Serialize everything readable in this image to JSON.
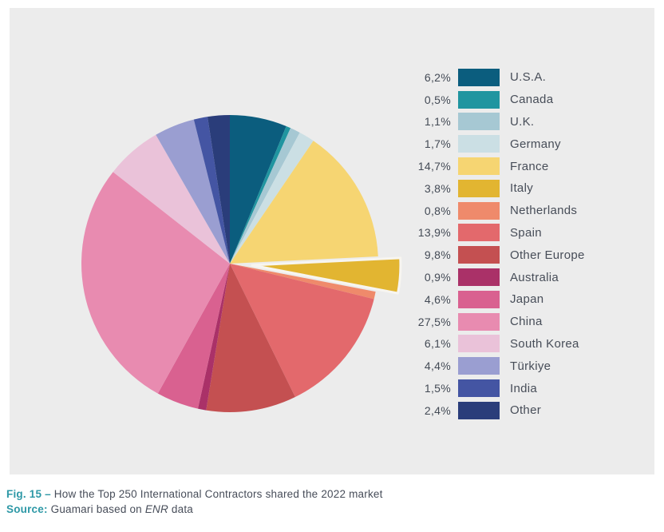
{
  "colors": {
    "panel_bg": "#ececec",
    "accent_teal": "#2d98a6",
    "caption_text": "#474d59",
    "legend_text": "#434a55"
  },
  "chart_data": {
    "type": "pie",
    "title": "How the Top 250 International Contractors shared the 2022 market",
    "source": "Guamari based on ENR data",
    "start_angle_deg": 0,
    "direction": "clockwise",
    "legend_position": "right",
    "slices": [
      {
        "label": "U.S.A.",
        "percent_display": "6,2%",
        "value": 6.2,
        "color": "#0b5d7e",
        "exploded": false
      },
      {
        "label": "Canada",
        "percent_display": "0,5%",
        "value": 0.5,
        "color": "#2095a0",
        "exploded": false
      },
      {
        "label": "U.K.",
        "percent_display": "1,1%",
        "value": 1.1,
        "color": "#a6c8d3",
        "exploded": false
      },
      {
        "label": "Germany",
        "percent_display": "1,7%",
        "value": 1.7,
        "color": "#cbdfe4",
        "exploded": false
      },
      {
        "label": "France",
        "percent_display": "14,7%",
        "value": 14.7,
        "color": "#f6d572",
        "exploded": false
      },
      {
        "label": "Italy",
        "percent_display": "3,8%",
        "value": 3.8,
        "color": "#e2b531",
        "exploded": true
      },
      {
        "label": "Netherlands",
        "percent_display": "0,8%",
        "value": 0.8,
        "color": "#ef8a6b",
        "exploded": false
      },
      {
        "label": "Spain",
        "percent_display": "13,9%",
        "value": 13.9,
        "color": "#e3696c",
        "exploded": false
      },
      {
        "label": "Other Europe",
        "percent_display": "9,8%",
        "value": 9.8,
        "color": "#c45051",
        "exploded": false
      },
      {
        "label": "Australia",
        "percent_display": "0,9%",
        "value": 0.9,
        "color": "#aa3168",
        "exploded": false
      },
      {
        "label": "Japan",
        "percent_display": "4,6%",
        "value": 4.6,
        "color": "#d96190",
        "exploded": false
      },
      {
        "label": "China",
        "percent_display": "27,5%",
        "value": 27.5,
        "color": "#e88bb0",
        "exploded": false
      },
      {
        "label": "South Korea",
        "percent_display": "6,1%",
        "value": 6.1,
        "color": "#eac2d9",
        "exploded": false
      },
      {
        "label": "Türkiye",
        "percent_display": "4,4%",
        "value": 4.4,
        "color": "#9a9ed1",
        "exploded": false
      },
      {
        "label": "India",
        "percent_display": "1,5%",
        "value": 1.5,
        "color": "#4455a3",
        "exploded": false
      },
      {
        "label": "Other",
        "percent_display": "2,4%",
        "value": 2.4,
        "color": "#2a3d7a",
        "exploded": false
      }
    ]
  },
  "caption": {
    "fig_label": "Fig. 15 –",
    "fig_text": "How the Top 250 International Contractors shared the 2022 market",
    "source_label": "Source:",
    "source_before": "Guamari based on",
    "source_italic": "ENR",
    "source_after": "data"
  }
}
